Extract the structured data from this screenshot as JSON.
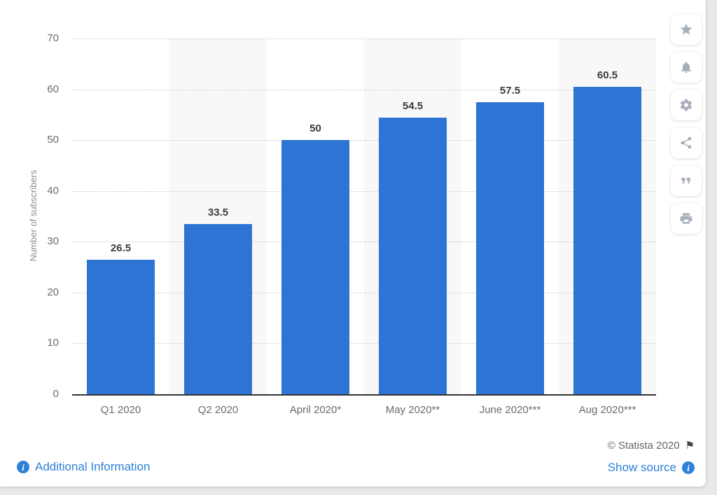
{
  "chart_data": {
    "type": "bar",
    "title": "",
    "categories": [
      "Q1 2020",
      "Q2 2020",
      "April 2020*",
      "May 2020**",
      "June 2020***",
      "Aug 2020***"
    ],
    "values": [
      26.5,
      33.5,
      50,
      54.5,
      57.5,
      60.5
    ],
    "value_labels": [
      "26.5",
      "33.5",
      "50",
      "54.5",
      "57.5",
      "60.5"
    ],
    "xlabel": "",
    "ylabel": "Number of subscribers",
    "ylim": [
      0,
      70
    ],
    "yticks": [
      0,
      10,
      20,
      30,
      40,
      50,
      60,
      70
    ],
    "grid": "horizontal-dotted",
    "column_stripes": "alternate-even-columns",
    "legend": null
  },
  "colors": {
    "bar": "#2e74d4",
    "stripe": "#f8f8f9",
    "link": "#2d81d8",
    "axis_text": "#6b6b6b",
    "value_label": "#3c3c3c"
  },
  "toolbar": {
    "buttons": [
      "favorite",
      "alerts",
      "settings",
      "share",
      "cite",
      "print"
    ]
  },
  "footer": {
    "additional_info_label": "Additional Information",
    "copyright": "© Statista 2020",
    "show_source_label": "Show source"
  },
  "icons": {
    "info": "i",
    "flag": "⚑"
  }
}
